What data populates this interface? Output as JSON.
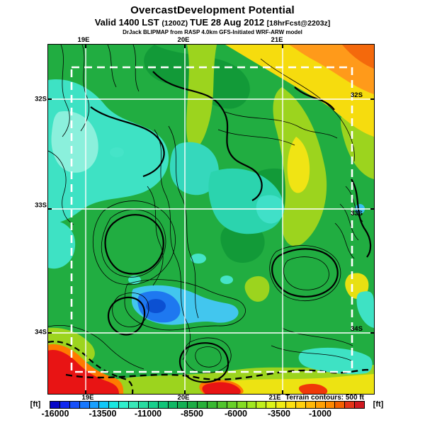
{
  "header": {
    "title": "OvercastDevelopment Potential",
    "valid": {
      "part1": "Valid 1400 LST ",
      "part2": "(1200Z) ",
      "part3": "TUE 28 Aug 2012 ",
      "part4": "[18hrFcst@2203z]"
    },
    "model_line": "DrJack BLIPMAP from RASP 4.0km GFS-Initiated WRF-ARW model"
  },
  "map": {
    "top_ticks": [
      "19E",
      "20E",
      "21E"
    ],
    "bottom_ticks": [
      "19E",
      "20E",
      "21E"
    ],
    "left_ticks": [
      "32S",
      "33S",
      "34S"
    ],
    "right_ticks": [
      "32S",
      "33S",
      "34S"
    ],
    "terrain_note": "Terrain contours: 500 ft"
  },
  "colorbar": {
    "unit_left": "[ft]",
    "unit_right": "[ft]",
    "tick_labels": [
      "-16000",
      "-13500",
      "-11000",
      "-8500",
      "-6000",
      "-3500",
      "-1000"
    ],
    "colors": [
      "#0808c8",
      "#1028f0",
      "#1850fa",
      "#1878ff",
      "#18a0ff",
      "#10c8f8",
      "#18e8e0",
      "#30f0cc",
      "#38e8b8",
      "#28dca0",
      "#18d08c",
      "#10c478",
      "#10b864",
      "#14b054",
      "#1cac44",
      "#28b038",
      "#38b830",
      "#50c42c",
      "#68d028",
      "#84dc24",
      "#a0e820",
      "#c0f01c",
      "#dcf418",
      "#f0ec14",
      "#fce010",
      "#ffd00c",
      "#ffb808",
      "#ffa004",
      "#ff8800",
      "#f46000",
      "#e43418",
      "#d01820"
    ]
  }
}
